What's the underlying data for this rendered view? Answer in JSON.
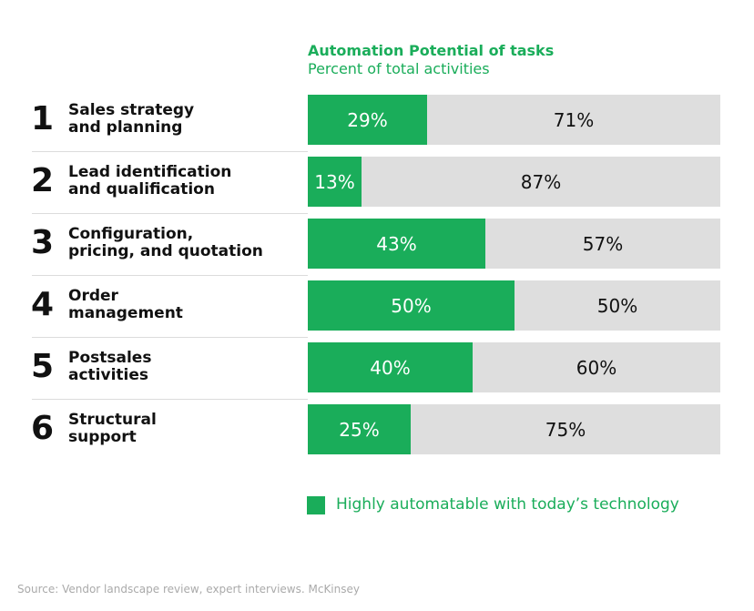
{
  "chart_data": {
    "type": "bar",
    "orientation": "horizontal-stacked",
    "title": "Automation Potential of tasks",
    "subtitle": "Percent of total activities",
    "categories": [
      {
        "rank": "1",
        "label": "Sales strategy\nand planning"
      },
      {
        "rank": "2",
        "label": "Lead identification\nand qualification"
      },
      {
        "rank": "3",
        "label": "Configuration,\npricing, and quotation"
      },
      {
        "rank": "4",
        "label": "Order\nmanagement"
      },
      {
        "rank": "5",
        "label": "Postsales\nactivities"
      },
      {
        "rank": "6",
        "label": "Structural\nsupport"
      }
    ],
    "series": [
      {
        "name": "Highly automatable with today’s technology",
        "color": "#1aad5a",
        "values": [
          29,
          13,
          43,
          50,
          40,
          25
        ],
        "labels": [
          "29%",
          "13%",
          "43%",
          "50%",
          "40%",
          "25%"
        ]
      },
      {
        "color": "#dedede",
        "values": [
          71,
          87,
          57,
          50,
          60,
          75
        ],
        "labels": [
          "71%",
          "87%",
          "57%",
          "50%",
          "60%",
          "75%"
        ]
      }
    ],
    "legend": "bottom-right",
    "source": "Source: Vendor landscape review, expert interviews. McKinsey"
  }
}
